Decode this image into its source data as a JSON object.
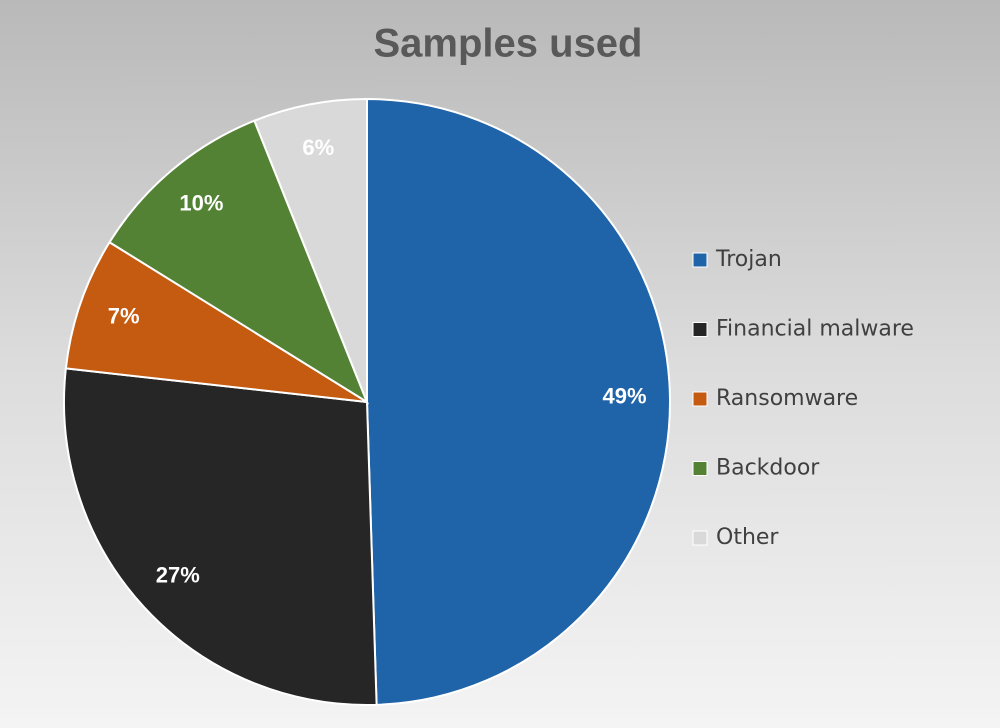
{
  "chart_data": {
    "type": "pie",
    "title": "Samples used",
    "categories": [
      "Trojan",
      "Financial malware",
      "Ransomware",
      "Backdoor",
      "Other"
    ],
    "values": [
      49,
      27,
      7,
      10,
      6
    ],
    "value_labels": [
      "49%",
      "27%",
      "7%",
      "10%",
      "6%"
    ],
    "colors": [
      "#1f63a8",
      "#262626",
      "#c55a11",
      "#548235",
      "#d9d9d9"
    ],
    "legend": "right"
  }
}
